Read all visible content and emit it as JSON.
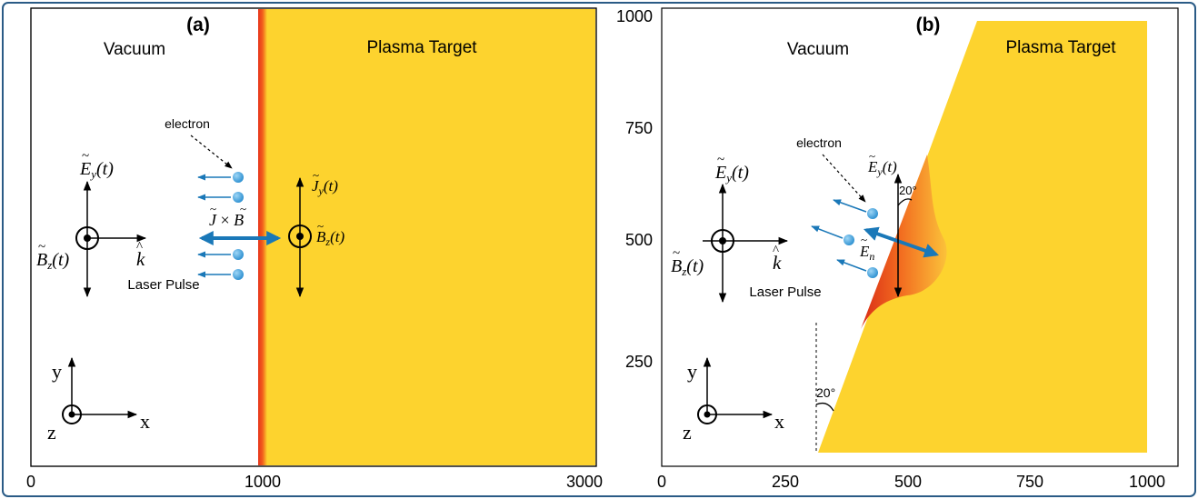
{
  "panel_a": {
    "label": "(a)",
    "vacuum": "Vacuum",
    "target": "Plasma Target",
    "electron": "electron",
    "laser": "Laser Pulse",
    "ticks_x": [
      "0",
      "1000",
      "3000"
    ]
  },
  "panel_b": {
    "label": "(b)",
    "vacuum": "Vacuum",
    "target": "Plasma Target",
    "electron": "electron",
    "laser": "Laser Pulse",
    "angle_top": "20°",
    "angle_bottom": "20°",
    "ticks_x": [
      "0",
      "250",
      "500",
      "750",
      "1000"
    ],
    "ticks_y": [
      "1000",
      "750",
      "500",
      "250"
    ]
  },
  "symbols": {
    "E": "E",
    "B": "B",
    "J": "J",
    "k": "k",
    "y": "y",
    "z": "z",
    "n": "n",
    "t": "(t)",
    "times": " × ",
    "tilde": "~",
    "hat": "^"
  },
  "axes": {
    "x": "x",
    "y": "y",
    "z": "z"
  },
  "colors": {
    "target": "#fdd32e",
    "edge": "#e83a1a",
    "arrow_blue": "#1a78b8",
    "electron": "#3aa0dd",
    "frame": "#2a5b86"
  }
}
